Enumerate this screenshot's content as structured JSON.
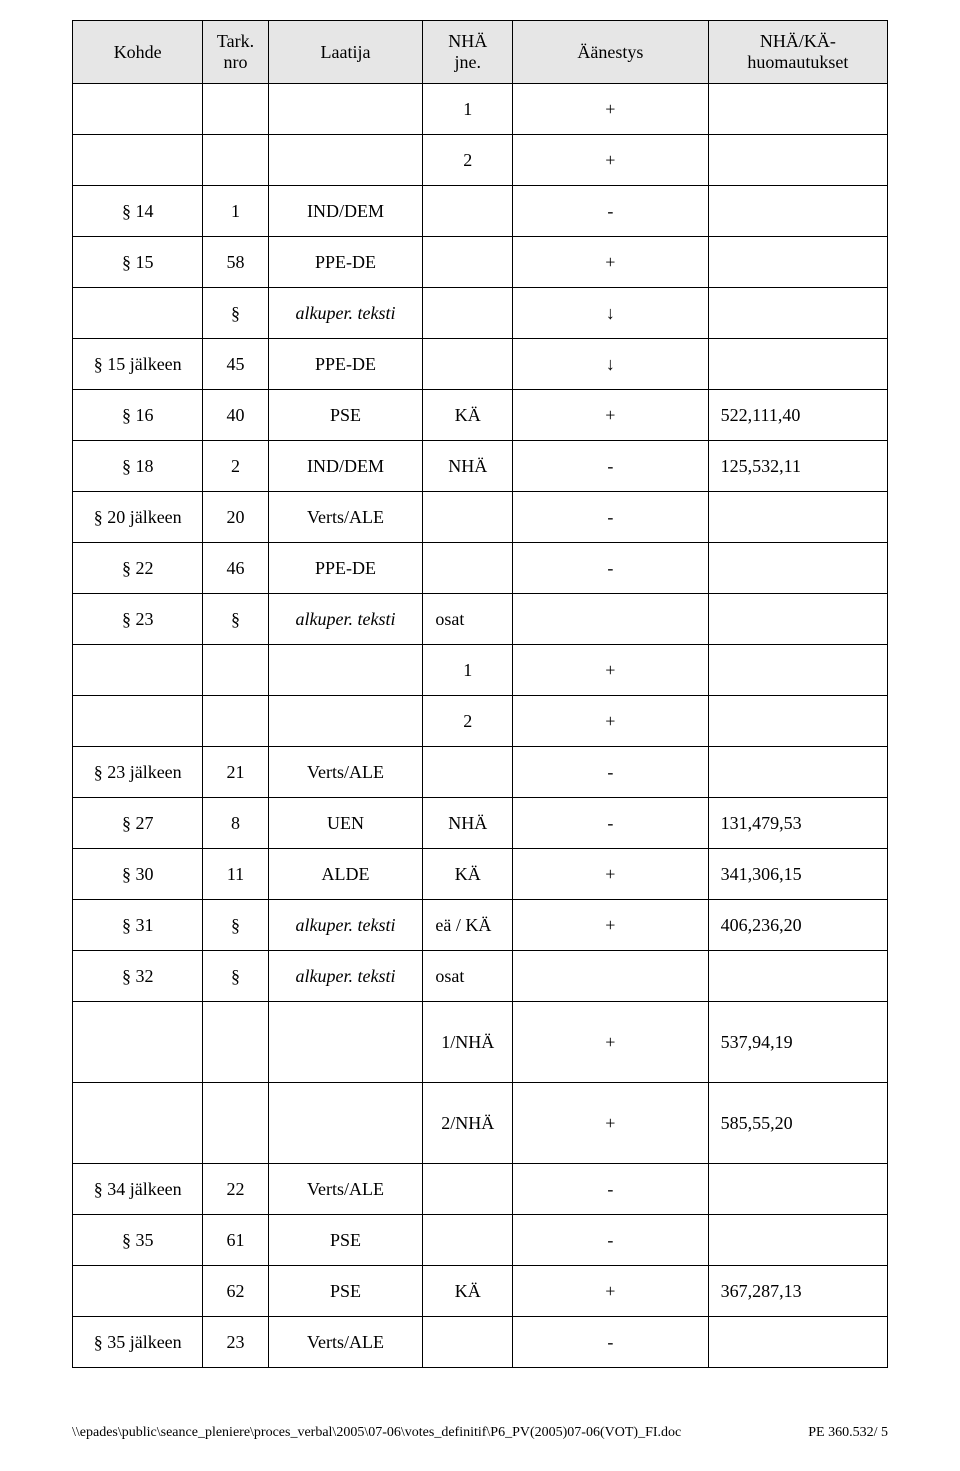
{
  "table": {
    "background_header": "#e6e6e6",
    "border_color": "#000000",
    "font_family": "Times New Roman",
    "header_fontsize": 18,
    "cell_fontsize": 18,
    "headers": {
      "c1": "Kohde",
      "c2_l1": "Tark.",
      "c2_l2": "nro",
      "c3": "Laatija",
      "c4_l1": "NHÄ",
      "c4_l2": "jne.",
      "c5": "Äänestys",
      "c6_l1": "NHÄ/KÄ-",
      "c6_l2": "huomautukset"
    },
    "rows": [
      {
        "c1": "",
        "c2": "",
        "c3": "",
        "c4": "1",
        "c5": "+",
        "c6": ""
      },
      {
        "c1": "",
        "c2": "",
        "c3": "",
        "c4": "2",
        "c5": "+",
        "c6": ""
      },
      {
        "c1": "§ 14",
        "c2": "1",
        "c3": "IND/DEM",
        "c4": "",
        "c5": "-",
        "c6": ""
      },
      {
        "c1": "§ 15",
        "c2": "58",
        "c3": "PPE-DE",
        "c4": "",
        "c5": "+",
        "c6": ""
      },
      {
        "c1": "",
        "c2": "§",
        "c3": "alkuper. teksti",
        "c4": "",
        "c5": "↓",
        "c6": "",
        "c3_italic": true
      },
      {
        "c1": "§ 15 jälkeen",
        "c2": "45",
        "c3": "PPE-DE",
        "c4": "",
        "c5": "↓",
        "c6": ""
      },
      {
        "c1": "§ 16",
        "c2": "40",
        "c3": "PSE",
        "c4": "KÄ",
        "c5": "+",
        "c6": "522,111,40"
      },
      {
        "c1": "§ 18",
        "c2": "2",
        "c3": "IND/DEM",
        "c4": "NHÄ",
        "c5": "-",
        "c6": "125,532,11"
      },
      {
        "c1": "§ 20 jälkeen",
        "c2": "20",
        "c3": "Verts/ALE",
        "c4": "",
        "c5": "-",
        "c6": ""
      },
      {
        "c1": "§ 22",
        "c2": "46",
        "c3": "PPE-DE",
        "c4": "",
        "c5": "-",
        "c6": ""
      },
      {
        "c1": "§ 23",
        "c2": "§",
        "c3": "alkuper. teksti",
        "c4": "osat",
        "c5": "",
        "c6": "",
        "c3_italic": true,
        "c4_left": true
      },
      {
        "c1": "",
        "c2": "",
        "c3": "",
        "c4": "1",
        "c5": "+",
        "c6": ""
      },
      {
        "c1": "",
        "c2": "",
        "c3": "",
        "c4": "2",
        "c5": "+",
        "c6": ""
      },
      {
        "c1": "§ 23 jälkeen",
        "c2": "21",
        "c3": "Verts/ALE",
        "c4": "",
        "c5": "-",
        "c6": ""
      },
      {
        "c1": "§ 27",
        "c2": "8",
        "c3": "UEN",
        "c4": "NHÄ",
        "c5": "-",
        "c6": "131,479,53"
      },
      {
        "c1": "§ 30",
        "c2": "11",
        "c3": "ALDE",
        "c4": "KÄ",
        "c5": "+",
        "c6": "341,306,15"
      },
      {
        "c1": "§ 31",
        "c2": "§",
        "c3": "alkuper. teksti",
        "c4": "eä / KÄ",
        "c5": "+",
        "c6": "406,236,20",
        "c3_italic": true,
        "c4_left": true
      },
      {
        "c1": "§ 32",
        "c2": "§",
        "c3": "alkuper. teksti",
        "c4": "osat",
        "c5": "",
        "c6": "",
        "c3_italic": true,
        "c4_left": true
      },
      {
        "c1": "",
        "c2": "",
        "c3": "",
        "c4": "1/NHÄ",
        "c5": "+",
        "c6": "537,94,19",
        "tall": true
      },
      {
        "c1": "",
        "c2": "",
        "c3": "",
        "c4": "2/NHÄ",
        "c5": "+",
        "c6": "585,55,20",
        "tall": true
      },
      {
        "c1": "§ 34 jälkeen",
        "c2": "22",
        "c3": "Verts/ALE",
        "c4": "",
        "c5": "-",
        "c6": ""
      },
      {
        "c1": "§ 35",
        "c2": "61",
        "c3": "PSE",
        "c4": "",
        "c5": "-",
        "c6": ""
      },
      {
        "c1": "",
        "c2": "62",
        "c3": "PSE",
        "c4": "KÄ",
        "c5": "+",
        "c6": "367,287,13"
      },
      {
        "c1": "§ 35 jälkeen",
        "c2": "23",
        "c3": "Verts/ALE",
        "c4": "",
        "c5": "-",
        "c6": ""
      }
    ]
  },
  "footer": {
    "left": "\\\\epades\\public\\seance_pleniere\\proces_verbal\\2005\\07-06\\votes_definitif\\P6_PV(2005)07-06(VOT)_FI.doc",
    "right": "PE 360.532/ 5"
  }
}
